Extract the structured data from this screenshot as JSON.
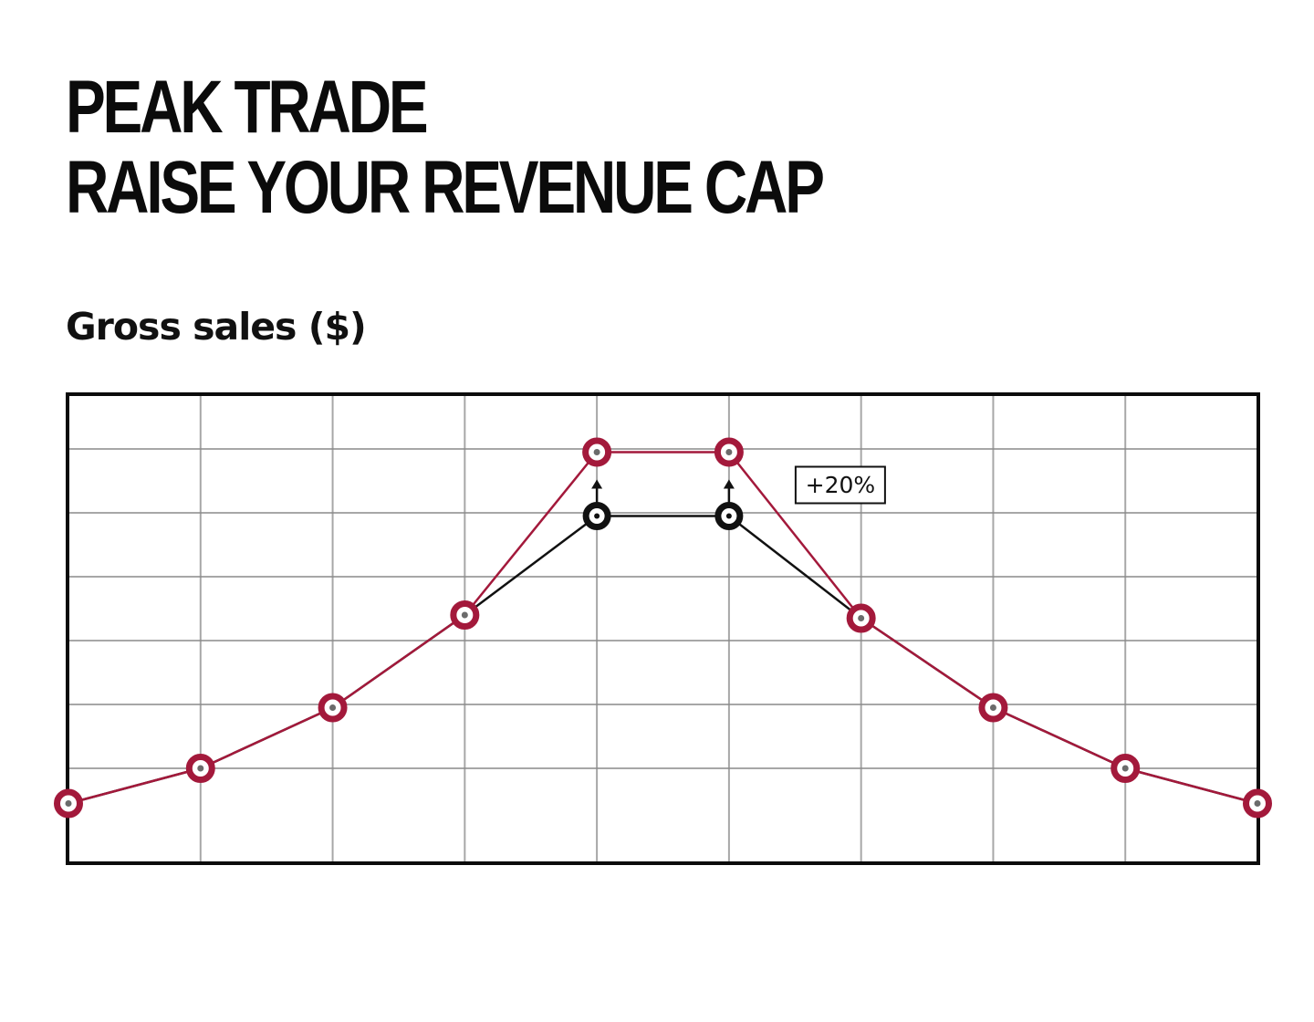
{
  "header": {
    "title_line1": "PEAK TRADE",
    "title_line2": "RAISE YOUR REVENUE CAP",
    "subtitle": "Gross sales ($)"
  },
  "chart_data": {
    "type": "line",
    "title": "PEAK TRADE RAISE YOUR REVENUE CAP",
    "subtitle": "Gross sales ($)",
    "xlabel": "",
    "ylabel": "Gross sales ($)",
    "x": [
      0,
      1,
      2,
      3,
      4,
      5,
      6,
      7,
      8,
      9
    ],
    "xlim": [
      0,
      9
    ],
    "ylim": [
      0,
      7
    ],
    "grid": true,
    "x_tick_labels_visible": false,
    "y_tick_labels_visible": false,
    "series": [
      {
        "role": "baseline",
        "color": "#111111",
        "values": [
          0.45,
          1.0,
          1.95,
          3.4,
          4.95,
          4.95,
          3.35,
          1.95,
          1.0,
          0.45
        ]
      },
      {
        "role": "raised",
        "color": "#a3193b",
        "values": [
          0.45,
          1.0,
          1.95,
          3.4,
          5.95,
          5.95,
          3.35,
          1.95,
          1.0,
          0.45
        ]
      }
    ],
    "raised_indices": [
      4,
      5
    ],
    "annotations": [
      {
        "text": "+20%"
      }
    ]
  }
}
